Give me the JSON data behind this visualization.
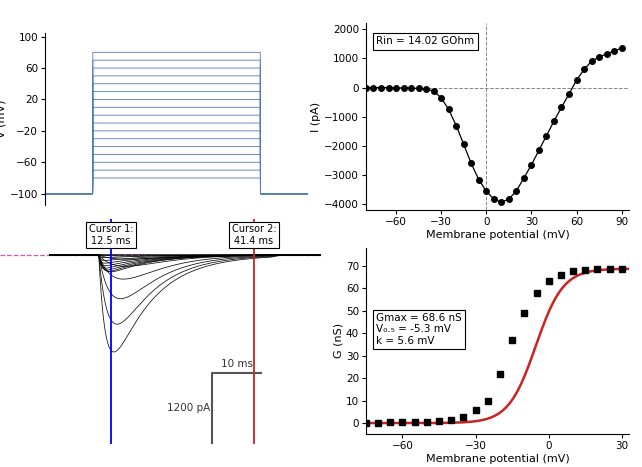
{
  "holding_potential": -100,
  "vsteps_min": -80,
  "vsteps_max": 80,
  "vsteps_n": 17,
  "iv_x": [
    -80,
    -75,
    -70,
    -65,
    -60,
    -55,
    -50,
    -45,
    -40,
    -35,
    -30,
    -25,
    -20,
    -15,
    -10,
    -5,
    0,
    5,
    10,
    15,
    20,
    25,
    30,
    35,
    40,
    45,
    50,
    55,
    60,
    65,
    70,
    75,
    80,
    85,
    90
  ],
  "iv_y": [
    0,
    0,
    0,
    -5,
    -10,
    -15,
    -20,
    -30,
    -55,
    -120,
    -350,
    -750,
    -1300,
    -1950,
    -2600,
    -3150,
    -3550,
    -3820,
    -3930,
    -3820,
    -3540,
    -3100,
    -2650,
    -2150,
    -1650,
    -1150,
    -680,
    -220,
    250,
    620,
    900,
    1050,
    1150,
    1250,
    1350
  ],
  "iv_xlabel": "Membrane potential (mV)",
  "iv_ylabel": "I (pA)",
  "iv_annotation": "Rin = 14.02 GOhm",
  "iv_xlim": [
    -80,
    95
  ],
  "iv_ylim": [
    -4200,
    2200
  ],
  "iv_xticks": [
    -60,
    -30,
    0,
    30,
    60,
    90
  ],
  "iv_yticks": [
    -4000,
    -3000,
    -2000,
    -1000,
    0,
    1000,
    2000
  ],
  "gv_x": [
    -75,
    -70,
    -65,
    -60,
    -55,
    -50,
    -45,
    -40,
    -35,
    -30,
    -25,
    -20,
    -15,
    -10,
    -5,
    0,
    5,
    10,
    15,
    20,
    25,
    30
  ],
  "gv_y": [
    0.1,
    0.2,
    0.3,
    0.4,
    0.5,
    0.6,
    0.8,
    1.2,
    2.5,
    6.0,
    10.0,
    22.0,
    37.0,
    49.0,
    58.0,
    63.0,
    66.0,
    67.5,
    68.2,
    68.5,
    68.6,
    68.6
  ],
  "gv_gmax": 68.6,
  "gv_vhalf": -5.3,
  "gv_k": 5.6,
  "gv_xlabel": "Membrane potential (mV)",
  "gv_ylabel": "G (nS)",
  "gv_annotation": "Gmax = 68.6 nS\nV₀.₅ = -5.3 mV\nk = 5.6 mV",
  "gv_xlim": [
    -75,
    33
  ],
  "gv_ylim": [
    -5,
    78
  ],
  "gv_xticks": [
    -60,
    -30,
    0,
    30
  ],
  "gv_yticks": [
    0,
    10,
    20,
    30,
    40,
    50,
    60,
    70
  ],
  "cursor1_label": "Cursor 1:\n12.5 ms",
  "cursor2_label": "Cursor 2:\n41.4 ms",
  "blue_color": "#5577BB",
  "red_color": "#CC2222",
  "pink_dashed": "#CC44AA"
}
